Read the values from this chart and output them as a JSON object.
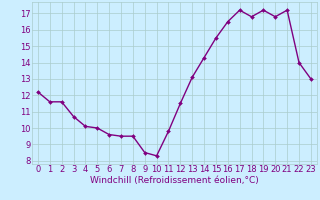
{
  "x_vals": [
    0,
    1,
    2,
    3,
    4,
    5,
    6,
    7,
    8,
    9,
    10,
    11,
    12,
    13,
    14,
    15,
    16,
    17,
    18,
    19,
    20,
    21,
    22,
    23
  ],
  "y_vals": [
    12.2,
    11.6,
    11.6,
    10.7,
    10.1,
    10.0,
    9.6,
    9.5,
    9.5,
    8.5,
    8.3,
    9.8,
    11.5,
    13.1,
    14.3,
    15.5,
    16.5,
    17.2,
    16.8,
    17.2,
    16.8,
    17.2,
    14.0,
    13.0
  ],
  "line_color": "#800080",
  "marker_color": "#800080",
  "bg_color": "#cceeff",
  "grid_color": "#aacccc",
  "xlabel": "Windchill (Refroidissement éolien,°C)",
  "xlim": [
    -0.5,
    23.5
  ],
  "ylim": [
    7.8,
    17.7
  ],
  "yticks": [
    8,
    9,
    10,
    11,
    12,
    13,
    14,
    15,
    16,
    17
  ],
  "xticks": [
    0,
    1,
    2,
    3,
    4,
    5,
    6,
    7,
    8,
    9,
    10,
    11,
    12,
    13,
    14,
    15,
    16,
    17,
    18,
    19,
    20,
    21,
    22,
    23
  ],
  "xlabel_fontsize": 6.5,
  "tick_fontsize": 6,
  "line_width": 1.0,
  "marker_size": 2.0
}
